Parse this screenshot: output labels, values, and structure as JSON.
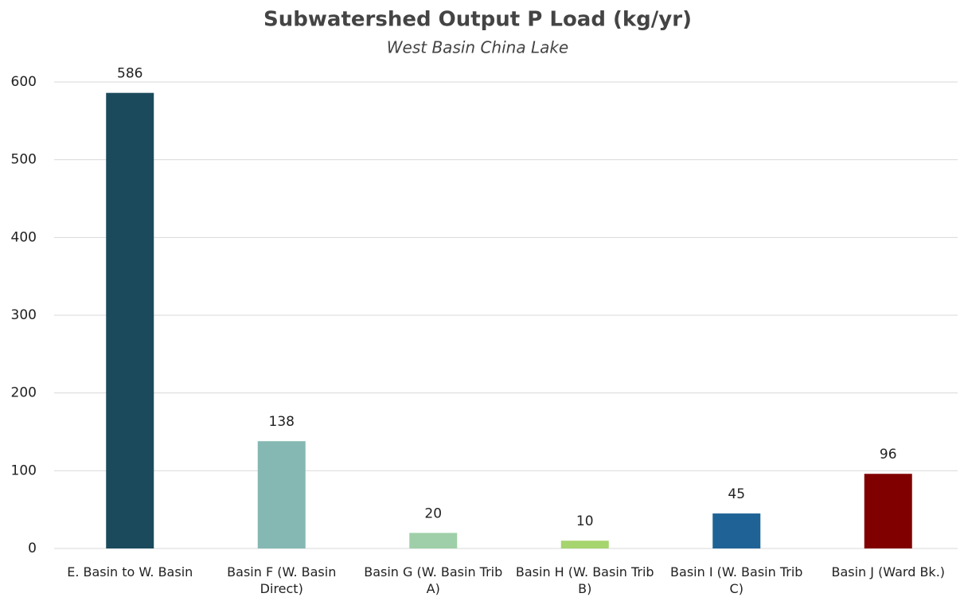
{
  "chart_data": {
    "type": "bar",
    "title": "Subwatershed Output P Load (kg/yr)",
    "subtitle": "West Basin China Lake",
    "categories": [
      "E. Basin to W. Basin",
      "Basin F (W. Basin Direct)",
      "Basin G (W. Basin Trib A)",
      "Basin H (W. Basin Trib B)",
      "Basin I  (W. Basin Trib C)",
      "Basin J (Ward Bk.)"
    ],
    "values": [
      586,
      138,
      20,
      10,
      45,
      96
    ],
    "colors": [
      "#1b4a5c",
      "#85b8b2",
      "#9fcfa8",
      "#a6d46e",
      "#1f6396",
      "#800000"
    ],
    "ylim": [
      0,
      600
    ],
    "yticks": [
      0,
      100,
      200,
      300,
      400,
      500,
      600
    ],
    "grid": true
  }
}
